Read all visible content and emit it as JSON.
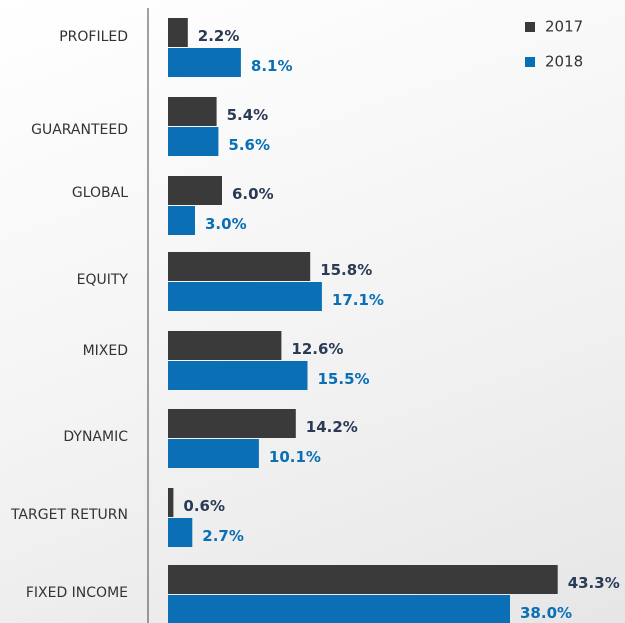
{
  "chart_data": {
    "type": "bar",
    "orientation": "horizontal",
    "categories": [
      "PROFILED",
      "GUARANTEED",
      "GLOBAL",
      "EQUITY",
      "MIXED",
      "DYNAMIC",
      "TARGET RETURN",
      "FIXED INCOME"
    ],
    "series": [
      {
        "name": "2017",
        "color": "#3a3a3a",
        "values": [
          2.2,
          5.4,
          6.0,
          15.8,
          12.6,
          14.2,
          0.6,
          43.3
        ],
        "value_labels": [
          "2.2%",
          "5.4%",
          "6.0%",
          "15.8%",
          "12.6%",
          "14.2%",
          "0.6%",
          "43.3%"
        ]
      },
      {
        "name": "2018",
        "color": "#0a6fb5",
        "values": [
          8.1,
          5.6,
          3.0,
          17.1,
          15.5,
          10.1,
          2.7,
          38.0
        ],
        "value_labels": [
          "8.1%",
          "5.6%",
          "3.0%",
          "17.1%",
          "15.5%",
          "10.1%",
          "2.7%",
          "38.0%"
        ]
      }
    ],
    "legend": "top-right"
  }
}
